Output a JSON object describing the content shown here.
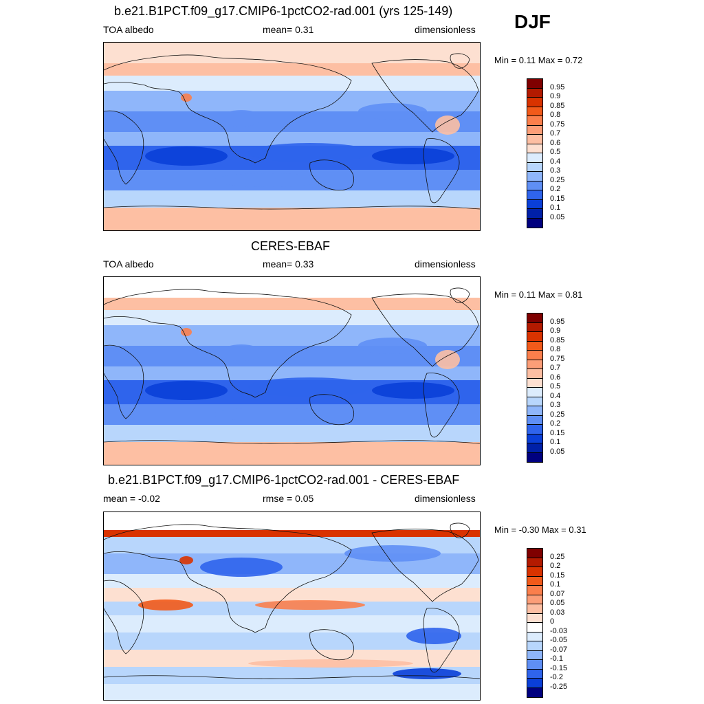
{
  "season": "DJF",
  "panels": [
    {
      "title": "b.e21.B1PCT.f09_g17.CMIP6-1pctCO2-rad.001 (yrs 125-149)",
      "left": "TOA albedo",
      "center": "mean=   0.31",
      "right": "dimensionless",
      "minmax": "Min =   0.11 Max =   0.72",
      "colorbar": {
        "labels": [
          "0.95",
          "0.9",
          "0.85",
          "0.8",
          "0.75",
          "0.7",
          "0.6",
          "0.5",
          "0.4",
          "0.3",
          "0.25",
          "0.2",
          "0.15",
          "0.1",
          "0.05"
        ],
        "colors": [
          "#7f0000",
          "#b31a00",
          "#d93300",
          "#f25a1a",
          "#fb7f4c",
          "#fc9e78",
          "#fdbfa3",
          "#fde0d1",
          "#dcecfd",
          "#b8d6fc",
          "#8fb6fa",
          "#5f8ff5",
          "#2f64ec",
          "#0a3fd8",
          "#0020a8",
          "#00007f"
        ]
      }
    },
    {
      "title": "CERES-EBAF",
      "left": "TOA albedo",
      "center": "mean=   0.33",
      "right": "dimensionless",
      "minmax": "Min =   0.11 Max =   0.81",
      "colorbar": {
        "labels": [
          "0.95",
          "0.9",
          "0.85",
          "0.8",
          "0.75",
          "0.7",
          "0.6",
          "0.5",
          "0.4",
          "0.3",
          "0.25",
          "0.2",
          "0.15",
          "0.1",
          "0.05"
        ],
        "colors": [
          "#7f0000",
          "#b31a00",
          "#d93300",
          "#f25a1a",
          "#fb7f4c",
          "#fc9e78",
          "#fdbfa3",
          "#fde0d1",
          "#dcecfd",
          "#b8d6fc",
          "#8fb6fa",
          "#5f8ff5",
          "#2f64ec",
          "#0a3fd8",
          "#0020a8",
          "#00007f"
        ]
      }
    },
    {
      "title": "b.e21.B1PCT.f09_g17.CMIP6-1pctCO2-rad.001 - CERES-EBAF",
      "left": "mean =  -0.02",
      "center": "rmse =   0.05",
      "right": "dimensionless",
      "minmax": "Min =  -0.30 Max =   0.31",
      "colorbar": {
        "labels": [
          "0.25",
          "0.2",
          "0.15",
          "0.1",
          "0.07",
          "0.05",
          "0.03",
          "0",
          "-0.03",
          "-0.05",
          "-0.07",
          "-0.1",
          "-0.15",
          "-0.2",
          "-0.25"
        ],
        "colors": [
          "#7f0000",
          "#b31a00",
          "#d93300",
          "#f25a1a",
          "#fb7f4c",
          "#fc9e78",
          "#fdbfa3",
          "#fde0d1",
          "#ffffff",
          "#dcecfd",
          "#b8d6fc",
          "#8fb6fa",
          "#5f8ff5",
          "#2f64ec",
          "#0a3fd8",
          "#00007f"
        ]
      }
    }
  ]
}
